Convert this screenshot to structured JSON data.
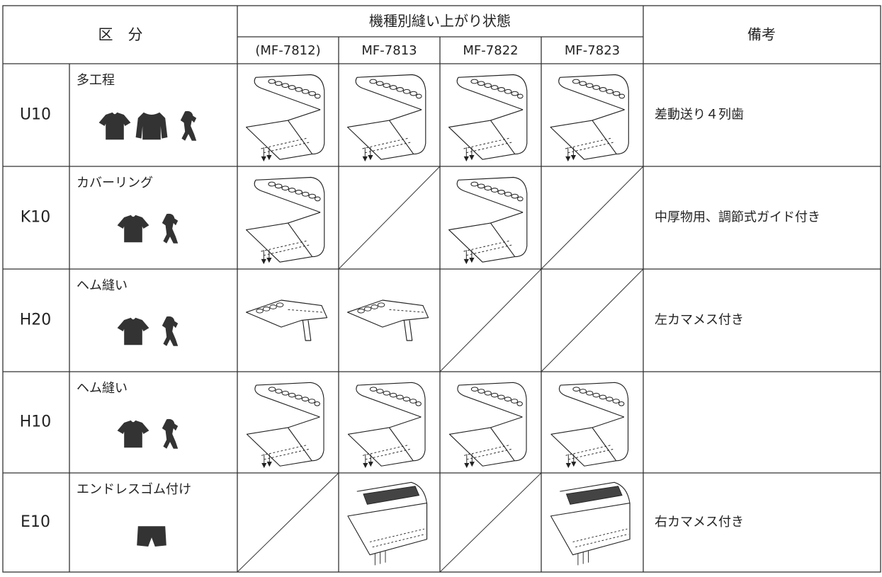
{
  "header": {
    "section": "区　分",
    "models_title": "機種別縫い上がり状態",
    "models": [
      "(MF-7812)",
      "MF-7813",
      "MF-7822",
      "MF-7823"
    ],
    "remarks": "備考"
  },
  "rows": [
    {
      "code": "U10",
      "type": "多工程",
      "remarks": "差動送り４列歯"
    },
    {
      "code": "K10",
      "type": "カバーリング",
      "remarks": "中厚物用、調節式ガイド付き"
    },
    {
      "code": "H20",
      "type": "ヘム縫い",
      "remarks": "左カマメス付き"
    },
    {
      "code": "H10",
      "type": "ヘム縫い"
    },
    {
      "code": "E10",
      "type": "エンドレスゴム付け",
      "remarks": "右カマメス付き"
    }
  ]
}
